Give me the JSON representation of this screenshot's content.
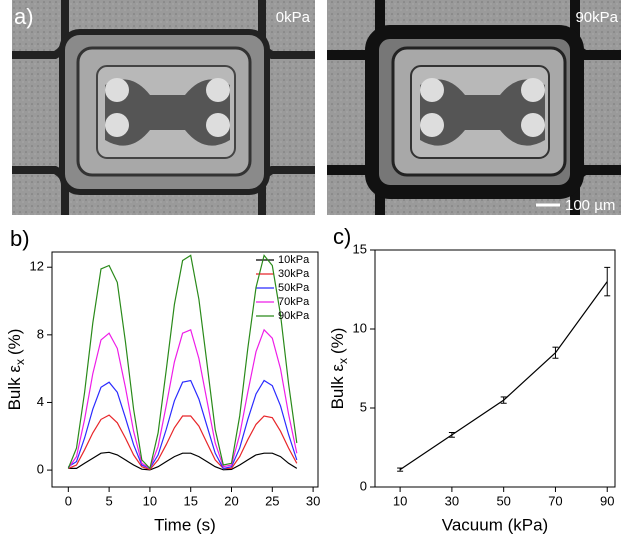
{
  "images": [
    {
      "panel_label": "a)",
      "label": "0kPa"
    },
    {
      "label": "90kPa",
      "scale_bar": "100 µm"
    }
  ],
  "chart_data": [
    {
      "type": "line",
      "panel_label": "b)",
      "xlabel": "Time (s)",
      "ylabel": {
        "text": "Bulk ε",
        "subscript": "x",
        "unit": "(%)"
      },
      "xlim": [
        -2,
        30.6
      ],
      "xticks": [
        0,
        5,
        10,
        15,
        20,
        25,
        30
      ],
      "ylim": [
        -1,
        12.9
      ],
      "yticks": [
        0,
        4,
        8,
        12
      ],
      "legend": "top-right",
      "x": [
        0,
        1,
        2,
        3,
        4,
        5,
        6,
        7,
        8,
        9,
        10,
        11,
        12,
        13,
        14,
        15,
        16,
        17,
        18,
        19,
        20,
        21,
        22,
        23,
        24,
        25,
        26,
        27,
        28
      ],
      "series": [
        {
          "name": "10kPa",
          "color": "#000000",
          "values": [
            0.1,
            0.1,
            0.4,
            0.7,
            1.0,
            1.05,
            0.9,
            0.6,
            0.3,
            0.05,
            0.01,
            0.2,
            0.5,
            0.8,
            1.0,
            1.0,
            0.8,
            0.5,
            0.2,
            0.02,
            0.04,
            0.3,
            0.6,
            0.9,
            1.0,
            1.0,
            0.8,
            0.4,
            0.1
          ]
        },
        {
          "name": "30kPa",
          "color": "#e8262a",
          "values": [
            0.1,
            0.3,
            1.2,
            2.2,
            3.0,
            3.25,
            2.8,
            1.9,
            0.9,
            0.2,
            0.03,
            0.6,
            1.5,
            2.5,
            3.2,
            3.2,
            2.6,
            1.6,
            0.6,
            0.1,
            0.1,
            0.8,
            1.8,
            2.7,
            3.2,
            3.1,
            2.3,
            1.3,
            0.4
          ]
        },
        {
          "name": "50kPa",
          "color": "#2b2bff",
          "values": [
            0.2,
            0.5,
            1.9,
            3.6,
            4.9,
            5.2,
            4.6,
            3.1,
            1.5,
            0.3,
            0.1,
            0.9,
            2.4,
            4.1,
            5.2,
            5.3,
            4.2,
            2.6,
            1.0,
            0.1,
            0.2,
            1.3,
            3.0,
            4.5,
            5.3,
            5.0,
            3.8,
            2.1,
            0.6
          ]
        },
        {
          "name": "70kPa",
          "color": "#ee1ee8",
          "values": [
            0.1,
            0.8,
            3.0,
            5.7,
            7.7,
            8.1,
            7.2,
            4.9,
            2.3,
            0.4,
            0.1,
            1.4,
            3.8,
            6.4,
            8.1,
            8.3,
            6.6,
            4.1,
            1.6,
            0.2,
            0.3,
            2.1,
            4.6,
            7.0,
            8.3,
            7.8,
            6.0,
            3.3,
            1.0
          ]
        },
        {
          "name": "90kPa",
          "color": "#2a8a1a",
          "values": [
            0.1,
            1.3,
            4.6,
            8.7,
            11.9,
            12.1,
            11.1,
            7.6,
            3.6,
            0.6,
            0.1,
            2.2,
            5.9,
            9.8,
            12.4,
            12.7,
            10.1,
            6.3,
            2.4,
            0.3,
            0.4,
            3.2,
            7.2,
            10.8,
            12.7,
            12.1,
            9.2,
            5.1,
            1.6
          ]
        }
      ]
    },
    {
      "type": "errorline",
      "panel_label": "c)",
      "xlabel": "Vacuum (kPa)",
      "ylabel": {
        "text": "Bulk ε",
        "subscript": "x",
        "unit": "(%)"
      },
      "xlim": [
        0.3,
        93
      ],
      "xticks": [
        10,
        30,
        50,
        70,
        90
      ],
      "ylim": [
        0,
        15
      ],
      "yticks": [
        0,
        5,
        10,
        15
      ],
      "color": "#000000",
      "x": [
        10,
        30,
        50,
        70,
        90
      ],
      "values": [
        1.1,
        3.3,
        5.5,
        8.5,
        13.0
      ],
      "errors": [
        0.1,
        0.15,
        0.2,
        0.35,
        0.9
      ]
    }
  ]
}
